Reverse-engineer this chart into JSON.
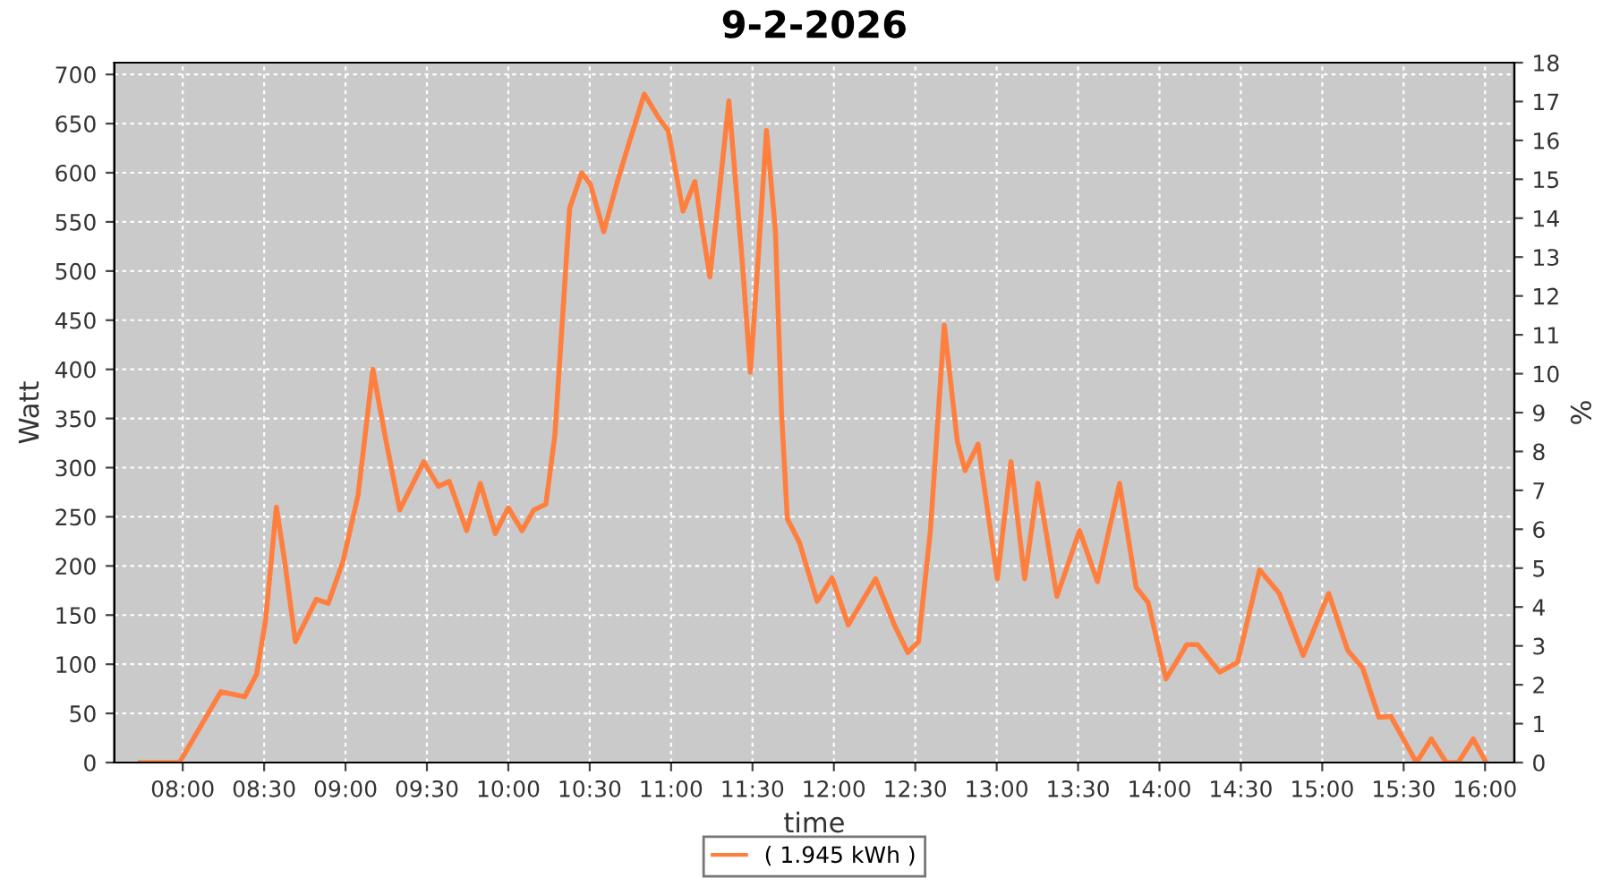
{
  "chart_data": {
    "type": "line",
    "title": "9-2-2026",
    "xlabel": "time",
    "ylabel": "Watt",
    "y2label": "%",
    "xlim": [
      7.58,
      16.18
    ],
    "ylim": [
      0,
      712
    ],
    "y2lim": [
      0,
      18
    ],
    "xticks": [
      {
        "value": 8,
        "label": "08:00"
      },
      {
        "value": 8.5,
        "label": "08:30"
      },
      {
        "value": 9,
        "label": "09:00"
      },
      {
        "value": 9.5,
        "label": "09:30"
      },
      {
        "value": 10,
        "label": "10:00"
      },
      {
        "value": 10.5,
        "label": "10:30"
      },
      {
        "value": 11,
        "label": "11:00"
      },
      {
        "value": 11.5,
        "label": "11:30"
      },
      {
        "value": 12,
        "label": "12:00"
      },
      {
        "value": 12.5,
        "label": "12:30"
      },
      {
        "value": 13,
        "label": "13:00"
      },
      {
        "value": 13.5,
        "label": "13:30"
      },
      {
        "value": 14,
        "label": "14:00"
      },
      {
        "value": 14.5,
        "label": "14:30"
      },
      {
        "value": 15,
        "label": "15:00"
      },
      {
        "value": 15.5,
        "label": "15:30"
      },
      {
        "value": 16,
        "label": "16:00"
      }
    ],
    "yticks": [
      0,
      50,
      100,
      150,
      200,
      250,
      300,
      350,
      400,
      450,
      500,
      550,
      600,
      650,
      700
    ],
    "y2ticks": [
      0,
      1,
      2,
      3,
      4,
      5,
      6,
      7,
      8,
      9,
      10,
      11,
      12,
      13,
      14,
      15,
      16,
      17,
      18
    ],
    "grid": true,
    "legend": "bottom",
    "marker": "none",
    "line_style": "solid",
    "series": [
      {
        "name": "( 1.945 kWh )",
        "color": "#ff7f3f",
        "x": [
          7.74,
          7.98,
          8.234,
          8.381,
          8.454,
          8.509,
          8.575,
          8.626,
          8.692,
          8.82,
          8.894,
          8.985,
          9.077,
          9.168,
          9.242,
          9.333,
          9.48,
          9.571,
          9.637,
          9.744,
          9.828,
          9.92,
          10.0,
          10.084,
          10.157,
          10.231,
          10.286,
          10.377,
          10.451,
          10.505,
          10.586,
          10.67,
          10.743,
          10.835,
          10.927,
          10.982,
          11.073,
          11.146,
          11.238,
          11.293,
          11.355,
          11.44,
          11.487,
          11.538,
          11.586,
          11.641,
          11.678,
          11.714,
          11.788,
          11.897,
          11.989,
          12.088,
          12.256,
          12.374,
          12.454,
          12.52,
          12.593,
          12.678,
          12.758,
          12.806,
          12.886,
          13.004,
          13.088,
          13.172,
          13.253,
          13.37,
          13.509,
          13.619,
          13.755,
          13.857,
          13.93,
          14.04,
          14.168,
          14.234,
          14.37,
          14.48,
          14.615,
          14.736,
          14.883,
          15.04,
          15.157,
          15.249,
          15.348,
          15.421,
          15.579,
          15.67,
          15.762,
          15.835,
          15.927,
          16.007
        ],
        "values": [
          0,
          0,
          72,
          67,
          90,
          145,
          260,
          205,
          123,
          166,
          162,
          205,
          272,
          400,
          333,
          257,
          306,
          281,
          286,
          236,
          284,
          233,
          259,
          236,
          257,
          263,
          333,
          564,
          600,
          588,
          540,
          591,
          631,
          680,
          655,
          643,
          561,
          591,
          494,
          576,
          673,
          503,
          397,
          521,
          643,
          540,
          357,
          248,
          224,
          164,
          188,
          140,
          187,
          139,
          112,
          123,
          236,
          445,
          327,
          297,
          324,
          187,
          306,
          187,
          284,
          169,
          236,
          184,
          284,
          178,
          163,
          85,
          120,
          120,
          92,
          102,
          196,
          172,
          109,
          172,
          114,
          96,
          46,
          47,
          0,
          24,
          0,
          0,
          24,
          0
        ]
      }
    ]
  }
}
